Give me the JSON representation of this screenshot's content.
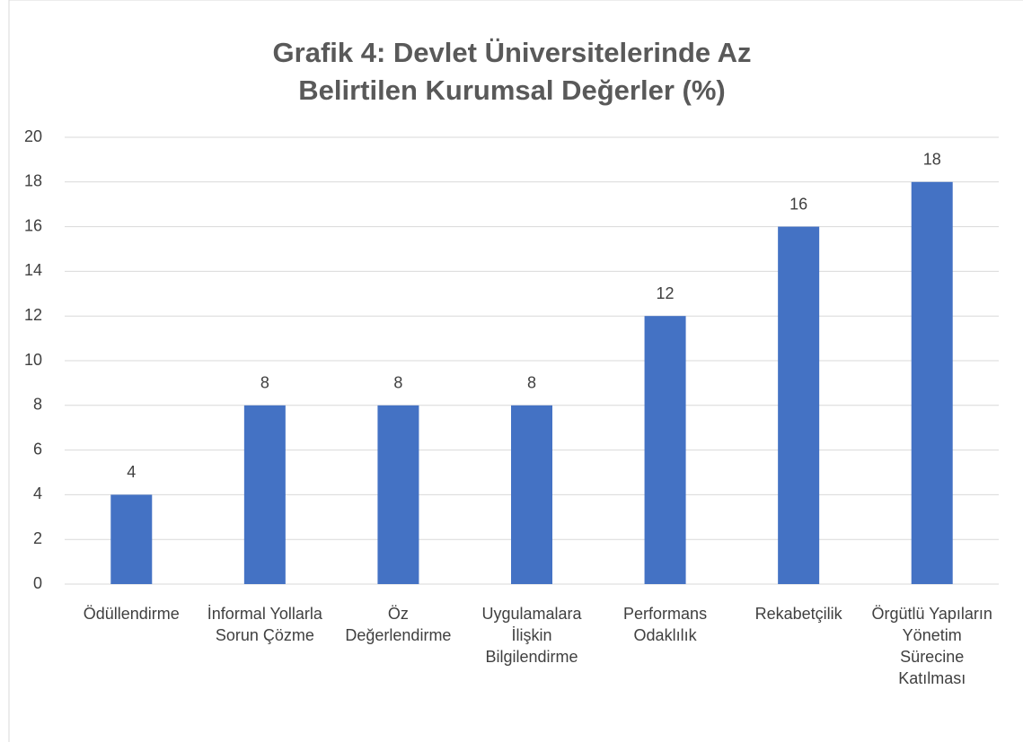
{
  "chart_data": {
    "type": "bar",
    "title": "Grafik 4: Devlet Üniversitelerinde Az Belirtilen Kurumsal Değerler (%)",
    "categories": [
      "Ödüllendirme",
      "İnformal Yollarla Sorun Çözme",
      "Öz Değerlendirme",
      "Uygulamalara İlişkin Bilgilendirme",
      "Performans Odaklılık",
      "Rekabetçilik",
      "Örgütlü Yapıların Yönetim Sürecine Katılması"
    ],
    "values": [
      4,
      8,
      8,
      8,
      12,
      16,
      18
    ],
    "color": "#4472c4",
    "ylim": [
      0,
      20
    ],
    "yticks": [
      0,
      2,
      4,
      6,
      8,
      10,
      12,
      14,
      16,
      18,
      20
    ],
    "grid": true
  }
}
